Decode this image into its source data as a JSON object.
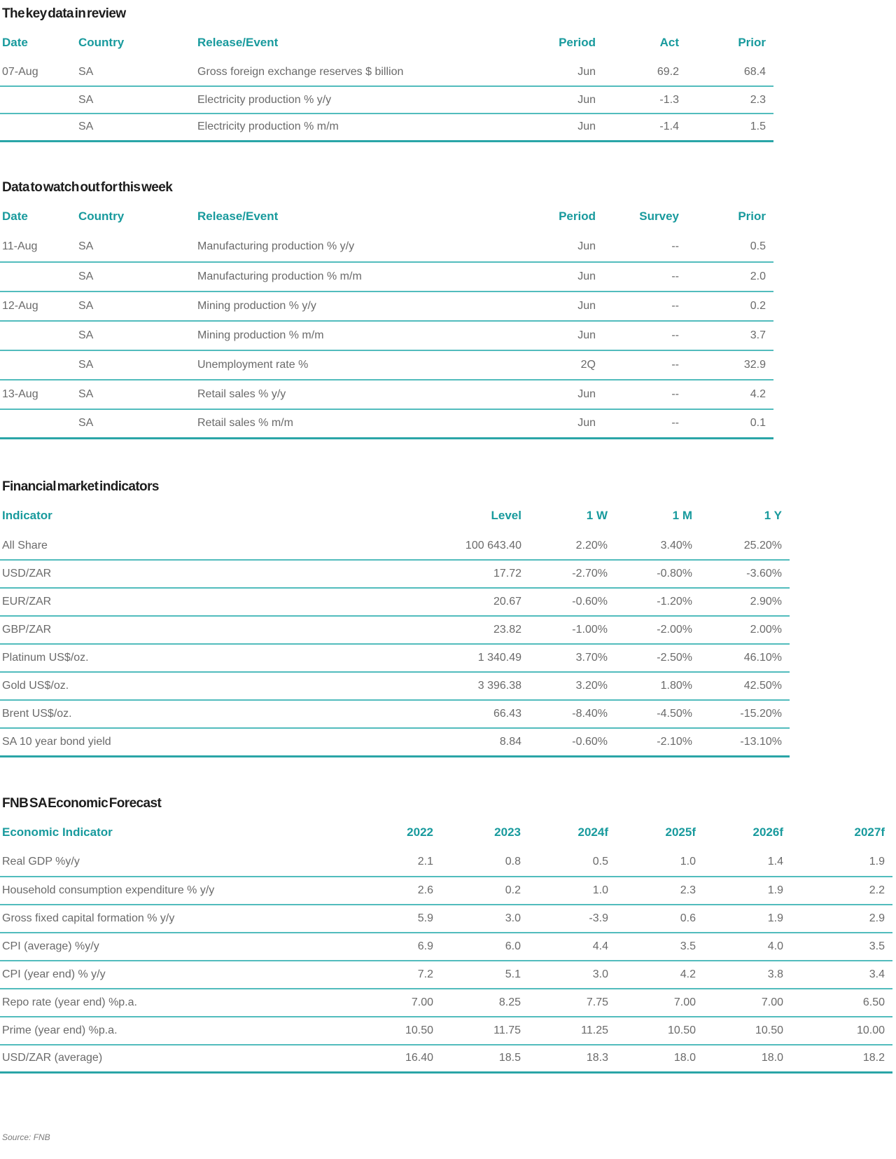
{
  "colors": {
    "accent_teal": "#189a9d",
    "row_line_teal": "#52bcbd",
    "table_end_line_teal": "#2aa5a7",
    "title_text": "#1d1d1d",
    "body_text": "#6a6a6a"
  },
  "tables": [
    {
      "title": "The key data in review",
      "columns": [
        "Date",
        "Country",
        "Release/Event",
        "Period",
        "Act",
        "Prior"
      ],
      "rows": [
        [
          "07-Aug",
          "SA",
          "Gross foreign exchange reserves $ billion",
          "Jun",
          "69.2",
          "68.4"
        ],
        [
          "",
          "SA",
          "Electricity production % y/y",
          "Jun",
          "-1.3",
          "2.3"
        ],
        [
          "",
          "SA",
          "Electricity production % m/m",
          "Jun",
          "-1.4",
          "1.5"
        ]
      ]
    },
    {
      "title": "Data to watch out for this week",
      "columns": [
        "Date",
        "Country",
        "Release/Event",
        "Period",
        "Survey",
        "Prior"
      ],
      "rows": [
        [
          "11-Aug",
          "SA",
          "Manufacturing production % y/y",
          "Jun",
          "--",
          "0.5"
        ],
        [
          "",
          "SA",
          "Manufacturing production % m/m",
          "Jun",
          "--",
          "2.0"
        ],
        [
          "12-Aug",
          "SA",
          "Mining production % y/y",
          "Jun",
          "--",
          "0.2"
        ],
        [
          "",
          "SA",
          "Mining production % m/m",
          "Jun",
          "--",
          "3.7"
        ],
        [
          "",
          "SA",
          "Unemployment rate %",
          "2Q",
          "--",
          "32.9"
        ],
        [
          "13-Aug",
          "SA",
          "Retail sales % y/y",
          "Jun",
          "--",
          "4.2"
        ],
        [
          "",
          "SA",
          "Retail sales % m/m",
          "Jun",
          "--",
          "0.1"
        ]
      ]
    },
    {
      "title": "Financial market indicators",
      "columns": [
        "Indicator",
        "Level",
        "1 W",
        "1 M",
        "1 Y"
      ],
      "rows": [
        [
          "All Share",
          "100 643.40",
          "2.20%",
          "3.40%",
          "25.20%"
        ],
        [
          "USD/ZAR",
          "17.72",
          "-2.70%",
          "-0.80%",
          "-3.60%"
        ],
        [
          "EUR/ZAR",
          "20.67",
          "-0.60%",
          "-1.20%",
          "2.90%"
        ],
        [
          "GBP/ZAR",
          "23.82",
          "-1.00%",
          "-2.00%",
          "2.00%"
        ],
        [
          "Platinum US$/oz.",
          "1 340.49",
          "3.70%",
          "-2.50%",
          "46.10%"
        ],
        [
          "Gold US$/oz.",
          "3 396.38",
          "3.20%",
          "1.80%",
          "42.50%"
        ],
        [
          "Brent US$/oz.",
          "66.43",
          "-8.40%",
          "-4.50%",
          "-15.20%"
        ],
        [
          "SA 10 year bond yield",
          "8.84",
          "-0.60%",
          "-2.10%",
          "-13.10%"
        ]
      ]
    },
    {
      "title": "FNB SA Economic Forecast",
      "columns": [
        "Economic Indicator",
        "2022",
        "2023",
        "2024f",
        "2025f",
        "2026f",
        "2027f"
      ],
      "rows": [
        [
          "Real GDP %y/y",
          "2.1",
          "0.8",
          "0.5",
          "1.0",
          "1.4",
          "1.9"
        ],
        [
          "Household consumption expenditure % y/y",
          "2.6",
          "0.2",
          "1.0",
          "2.3",
          "1.9",
          "2.2"
        ],
        [
          "Gross fixed capital formation % y/y",
          "5.9",
          "3.0",
          "-3.9",
          "0.6",
          "1.9",
          "2.9"
        ],
        [
          "CPI (average) %y/y",
          "6.9",
          "6.0",
          "4.4",
          "3.5",
          "4.0",
          "3.5"
        ],
        [
          "CPI (year end) % y/y",
          "7.2",
          "5.1",
          "3.0",
          "4.2",
          "3.8",
          "3.4"
        ],
        [
          "Repo rate (year end) %p.a.",
          "7.00",
          "8.25",
          "7.75",
          "7.00",
          "7.00",
          "6.50"
        ],
        [
          "Prime (year end) %p.a.",
          "10.50",
          "11.75",
          "11.25",
          "10.50",
          "10.50",
          "10.00"
        ],
        [
          "USD/ZAR (average)",
          "16.40",
          "18.5",
          "18.3",
          "18.0",
          "18.0",
          "18.2"
        ]
      ]
    }
  ],
  "source_note": "Source: FNB"
}
